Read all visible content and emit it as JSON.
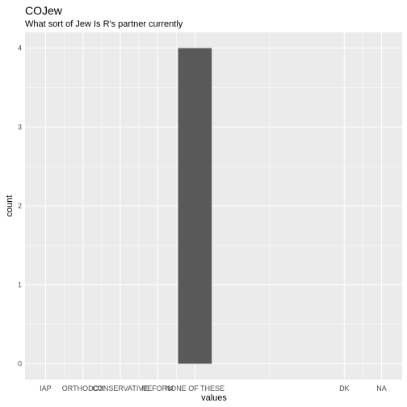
{
  "chart_data": {
    "type": "bar",
    "title": "COJew",
    "subtitle": "What sort of Jew Is R's partner currently",
    "xlabel": "values",
    "ylabel": "count",
    "categories": [
      "IAP",
      "ORTHODOX",
      "CONSERVATIVE",
      "REFORM",
      "NONE OF THESE",
      "DK",
      "NA"
    ],
    "category_positions": [
      1,
      2,
      3,
      4,
      5,
      9,
      10
    ],
    "x_range": [
      0.45,
      10.55
    ],
    "bars": [
      {
        "category": "NONE OF THESE",
        "x": 5,
        "value": 4
      }
    ],
    "y_ticks": [
      0,
      1,
      2,
      3,
      4
    ],
    "ylim": [
      -0.2,
      4.2
    ],
    "grid": true,
    "colors": {
      "panel_bg": "#ebebeb",
      "grid": "#ffffff",
      "bar": "#595959"
    }
  }
}
